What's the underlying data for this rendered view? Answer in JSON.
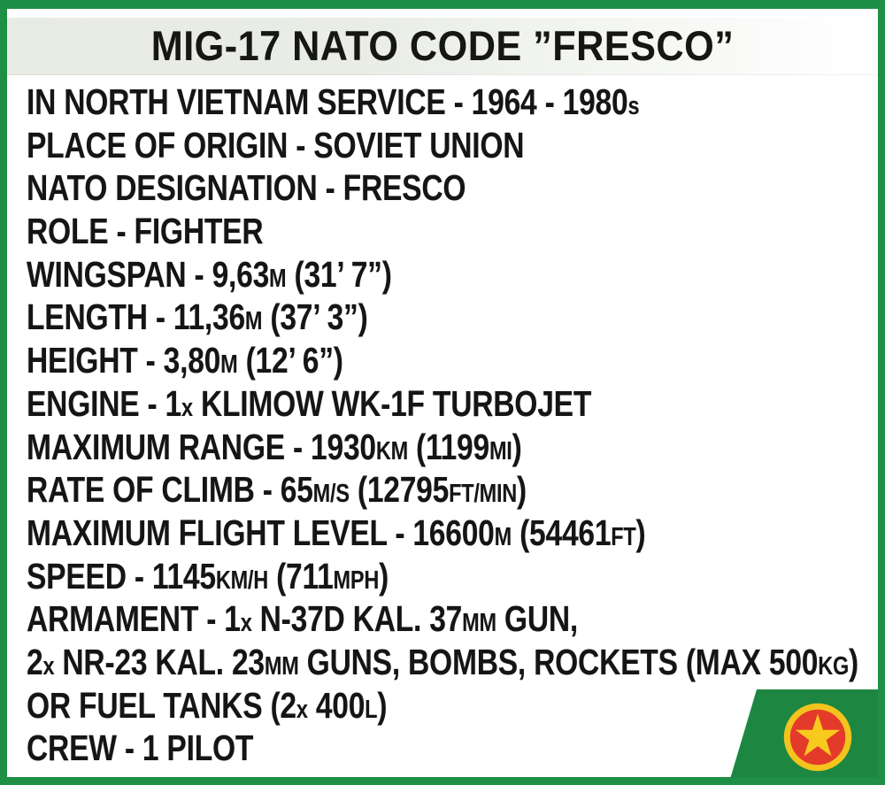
{
  "header": {
    "title": "MIG-17 NATO CODE ”FRESCO”"
  },
  "specs": [
    {
      "segments": [
        {
          "t": "IN NORTH VIETNAM SERVICE - 1964 - 1980"
        },
        {
          "t": "s",
          "small": true
        }
      ]
    },
    {
      "segments": [
        {
          "t": "PLACE OF ORIGIN - SOVIET UNION"
        }
      ]
    },
    {
      "segments": [
        {
          "t": "NATO DESIGNATION - FRESCO"
        }
      ]
    },
    {
      "segments": [
        {
          "t": "ROLE - FIGHTER"
        }
      ]
    },
    {
      "segments": [
        {
          "t": "WINGSPAN - 9,63"
        },
        {
          "t": "M",
          "small": true
        },
        {
          "t": " (31’ 7”)"
        }
      ]
    },
    {
      "segments": [
        {
          "t": "LENGTH - 11,36"
        },
        {
          "t": "M",
          "small": true
        },
        {
          "t": " (37’ 3”)"
        }
      ]
    },
    {
      "segments": [
        {
          "t": "HEIGHT - 3,80"
        },
        {
          "t": "M",
          "small": true
        },
        {
          "t": " (12’ 6”)"
        }
      ]
    },
    {
      "segments": [
        {
          "t": "ENGINE - 1"
        },
        {
          "t": "x",
          "small": true
        },
        {
          "t": " KLIMOW WK-1F TURBOJET"
        }
      ]
    },
    {
      "segments": [
        {
          "t": "MAXIMUM RANGE - 1930"
        },
        {
          "t": "KM",
          "small": true
        },
        {
          "t": " (1199"
        },
        {
          "t": "MI",
          "small": true
        },
        {
          "t": ")"
        }
      ]
    },
    {
      "segments": [
        {
          "t": "RATE OF CLIMB - 65"
        },
        {
          "t": "M/S",
          "small": true
        },
        {
          "t": " (12795"
        },
        {
          "t": "FT/MIN",
          "small": true
        },
        {
          "t": ")"
        }
      ]
    },
    {
      "segments": [
        {
          "t": "MAXIMUM FLIGHT LEVEL - 16600"
        },
        {
          "t": "M",
          "small": true
        },
        {
          "t": " (54461"
        },
        {
          "t": "FT",
          "small": true
        },
        {
          "t": ")"
        }
      ]
    },
    {
      "segments": [
        {
          "t": "SPEED - 1145"
        },
        {
          "t": "KM/H",
          "small": true
        },
        {
          "t": " (711"
        },
        {
          "t": "MPH",
          "small": true
        },
        {
          "t": ")"
        }
      ]
    },
    {
      "segments": [
        {
          "t": "ARMAMENT - 1"
        },
        {
          "t": "x",
          "small": true
        },
        {
          "t": " N-37D KAL. 37"
        },
        {
          "t": "MM",
          "small": true
        },
        {
          "t": " GUN,"
        }
      ]
    },
    {
      "segments": [
        {
          "t": "2"
        },
        {
          "t": "x",
          "small": true
        },
        {
          "t": " NR-23 KAL. 23"
        },
        {
          "t": "MM",
          "small": true
        },
        {
          "t": " GUNS, BOMBS, ROCKETS (MAX 500"
        },
        {
          "t": "KG",
          "small": true
        },
        {
          "t": ")"
        }
      ]
    },
    {
      "segments": [
        {
          "t": "OR FUEL TANKS (2"
        },
        {
          "t": "x",
          "small": true
        },
        {
          "t": " 400"
        },
        {
          "t": "L",
          "small": true
        },
        {
          "t": ")"
        }
      ]
    },
    {
      "segments": [
        {
          "t": "CREW - 1 PILOT"
        }
      ]
    }
  ],
  "emblem": {
    "name": "red-star-roundel"
  },
  "colors": {
    "frame-green": "#1e8f44",
    "corner-green": "#1d8741",
    "band-left": "#e7ebe4",
    "title-text": "#161613",
    "text": "#151515",
    "emblem-gold": "#f2c41d",
    "emblem-red": "#e43a2a",
    "emblem-star": "#f8ca1e"
  }
}
